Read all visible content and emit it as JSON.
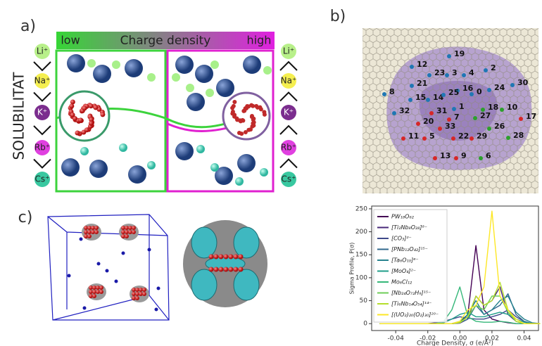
{
  "panels": {
    "a": {
      "label": "a)",
      "charge_bar": {
        "low": "low",
        "title": "Charge density",
        "high": "high"
      },
      "axis_label": "SOLUBILITAT",
      "ions": [
        "Li⁺",
        "Na⁺",
        "K⁺",
        "Rb⁺",
        "Cs⁺"
      ]
    },
    "b": {
      "label": "b)",
      "map_labels": [
        "19",
        "12",
        "23",
        "3",
        "4",
        "2",
        "21",
        "16",
        "24",
        "30",
        "8",
        "15",
        "14",
        "25",
        "0",
        "1",
        "18",
        "10",
        "32",
        "31",
        "7",
        "27",
        "17",
        "20",
        "33",
        "26",
        "11",
        "5",
        "22",
        "29",
        "28",
        "13",
        "9",
        "6"
      ]
    },
    "c": {
      "label": "c)"
    }
  },
  "chart_data": {
    "type": "line",
    "y_label": "Sigma Profile, P(σ)",
    "x_label": "Charge Density, σ (e/Å²)",
    "x": [
      -0.05,
      -0.045,
      -0.04,
      -0.035,
      -0.03,
      -0.025,
      -0.02,
      -0.015,
      -0.01,
      -0.005,
      0,
      0.005,
      0.01,
      0.015,
      0.02,
      0.025,
      0.03,
      0.035,
      0.04,
      0.045,
      0.05
    ],
    "xlim": [
      -0.055,
      0.049
    ],
    "ylim": [
      -15,
      256
    ],
    "xticks": [
      -0.04,
      -0.02,
      {
        "value": 0,
        "label": "0.00"
      },
      0.02,
      0.04
    ],
    "yticks": [
      0,
      50,
      100,
      150,
      200,
      250
    ],
    "series": [
      {
        "name": "PW₁₈O₆₂",
        "color": "#440154",
        "values": [
          0,
          0,
          0,
          0,
          0,
          0,
          0,
          0,
          0,
          0,
          2,
          20,
          170,
          30,
          10,
          5,
          2,
          0,
          0,
          0,
          0
        ]
      },
      {
        "name": "[Ti₂Nb₈O₂₈]⁸⁻",
        "color": "#482878",
        "values": [
          0,
          0,
          0,
          0,
          0,
          0,
          0,
          0,
          0,
          0,
          1,
          10,
          60,
          40,
          50,
          80,
          20,
          5,
          0,
          0,
          0
        ]
      },
      {
        "name": "[CO₃]²⁻",
        "color": "#3e4989",
        "values": [
          0,
          0,
          0,
          0,
          0,
          0,
          0,
          2,
          5,
          10,
          15,
          12,
          10,
          10,
          15,
          20,
          30,
          15,
          5,
          0,
          0
        ]
      },
      {
        "name": "[PNb₁₂O₄₂]¹⁵⁻",
        "color": "#31688e",
        "values": [
          0,
          0,
          0,
          0,
          0,
          0,
          0,
          0,
          0,
          0,
          2,
          10,
          40,
          20,
          30,
          40,
          65,
          20,
          5,
          0,
          0
        ]
      },
      {
        "name": "[Ta₆O₁₉]⁸⁻",
        "color": "#26828e",
        "values": [
          0,
          0,
          0,
          0,
          0,
          0,
          0,
          0,
          0,
          0,
          5,
          20,
          50,
          20,
          30,
          50,
          60,
          25,
          10,
          2,
          0
        ]
      },
      {
        "name": "[MoO₄]²⁻",
        "color": "#1f9e89",
        "values": [
          0,
          0,
          0,
          0,
          0,
          0,
          0,
          0,
          2,
          10,
          20,
          25,
          15,
          15,
          20,
          25,
          20,
          10,
          3,
          0,
          0
        ]
      },
      {
        "name": "Mo₆Cl₁₂",
        "color": "#35b779",
        "values": [
          0,
          0,
          0,
          0,
          0,
          0,
          0,
          0,
          5,
          30,
          80,
          15,
          5,
          3,
          3,
          5,
          3,
          0,
          0,
          0,
          0
        ]
      },
      {
        "name": "[Nb₂₄O₇₂H₉]¹⁵⁻",
        "color": "#6ece58",
        "values": [
          0,
          0,
          0,
          0,
          0,
          0,
          0,
          0,
          0,
          0,
          3,
          15,
          40,
          30,
          60,
          60,
          25,
          5,
          0,
          0,
          0
        ]
      },
      {
        "name": "[Ti₆Nb₁₄O₅₄]¹⁴⁻",
        "color": "#b5de2b",
        "values": [
          0,
          0,
          0,
          0,
          0,
          0,
          0,
          0,
          0,
          0,
          2,
          15,
          60,
          40,
          50,
          90,
          30,
          5,
          0,
          0,
          0
        ]
      },
      {
        "name": "[(UO₂)₂₀(O₂)₃₀]²⁰⁻",
        "color": "#fde725",
        "values": [
          0,
          0,
          0,
          0,
          0,
          0,
          0,
          0,
          0,
          0,
          5,
          30,
          40,
          80,
          245,
          60,
          30,
          10,
          0,
          0,
          0
        ]
      }
    ]
  }
}
